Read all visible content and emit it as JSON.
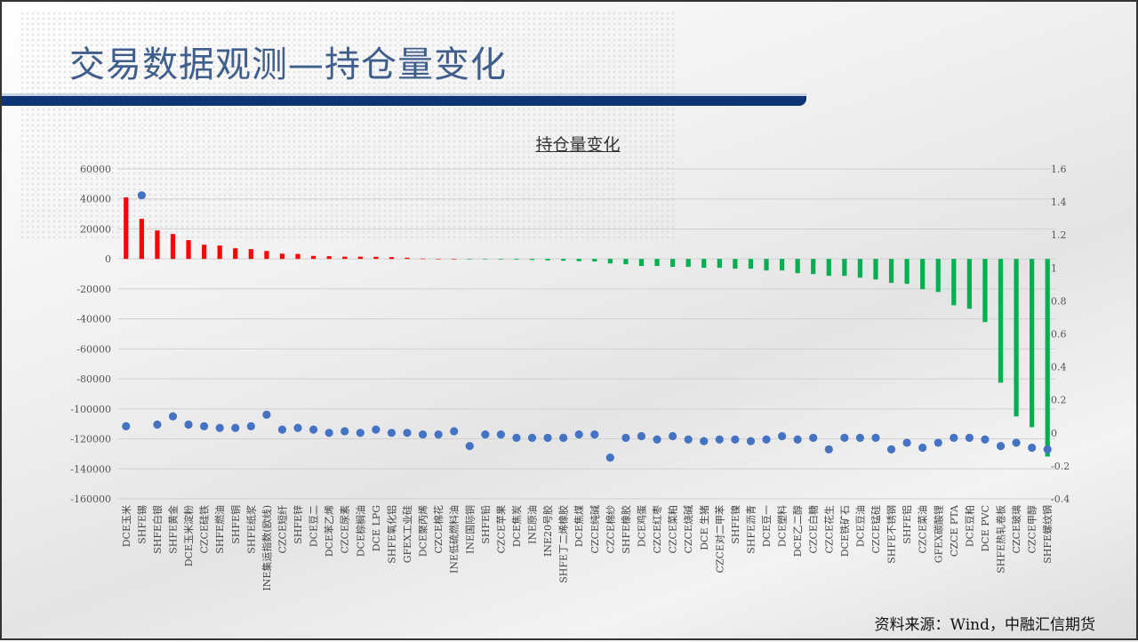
{
  "slide": {
    "title": "交易数据观测—持仓量变化",
    "source": "资料来源：Wind，中融汇信期货"
  },
  "colors": {
    "positive_bar": "#ff0000",
    "negative_bar": "#00b050",
    "dot": "#4472c4",
    "title": "#3f5e8c",
    "rule": "#0d3574"
  },
  "chart_data": {
    "type": "bar",
    "title": "持仓量变化",
    "categories": [
      "DCE玉米",
      "SHFE锡",
      "SHFE白银",
      "SHFE黄金",
      "DCE玉米淀粉",
      "CZCE硅铁",
      "SHFE燃油",
      "SHFE铜",
      "SHFE纸浆",
      "INE集运指数(欧线)",
      "CZCE短纤",
      "SHFE锌",
      "DCE豆二",
      "DCE苯乙烯",
      "CZCE尿素",
      "DCE棕榈油",
      "DCE LPG",
      "SHFE氧化铝",
      "GFEX工业硅",
      "DCE聚丙烯",
      "CZCE棉花",
      "INE低硫燃料油",
      "INE国际铜",
      "SHFE铅",
      "CZCE苹果",
      "DCE焦炭",
      "INE原油",
      "INE20号胶",
      "SHFE丁二烯橡胶",
      "DCE焦煤",
      "CZCE纯碱",
      "CZCE棉纱",
      "SHFE橡胶",
      "DCE鸡蛋",
      "CZCE红枣",
      "CZCE菜粕",
      "CZCE烧碱",
      "DCE 生猪",
      "CZCE对二甲苯",
      "SHFE镍",
      "SHFE沥青",
      "DCE豆一",
      "DCE塑料",
      "DCE乙二醇",
      "CZCE白糖",
      "CZCE花生",
      "DCE铁矿石",
      "DCE豆油",
      "CZCE锰硅",
      "SHFE不锈钢",
      "SHFE铝",
      "CZCE菜油",
      "GFEX碳酸锂",
      "CZCE PTA",
      "DCE豆粕",
      "DCE PVC",
      "SHFE热轧卷板",
      "CZCE玻璃",
      "CZCE甲醇",
      "SHFE螺纹钢"
    ],
    "series": [
      {
        "type": "bar",
        "axis": "left",
        "values": [
          41000,
          26700,
          19000,
          16600,
          12500,
          9500,
          8900,
          7100,
          6500,
          5300,
          3500,
          3300,
          2000,
          1800,
          1500,
          1500,
          1400,
          1200,
          800,
          200,
          100,
          50,
          -50,
          -300,
          -400,
          -500,
          -700,
          -1000,
          -1200,
          -1500,
          -1700,
          -3000,
          -3500,
          -4700,
          -4700,
          -5300,
          -5300,
          -5900,
          -5900,
          -6500,
          -6500,
          -7700,
          -7700,
          -9500,
          -10100,
          -11300,
          -11300,
          -12500,
          -13700,
          -16000,
          -16600,
          -20200,
          -22000,
          -30900,
          -33200,
          -42100,
          -82500,
          -105000,
          -112200,
          -131800
        ]
      },
      {
        "type": "scatter",
        "axis": "right",
        "values": [
          0.04,
          1.44,
          0.05,
          0.1,
          0.05,
          0.04,
          0.03,
          0.03,
          0.04,
          0.11,
          0.02,
          0.03,
          0.02,
          0.0,
          0.01,
          0.0,
          0.02,
          0.0,
          0.0,
          -0.01,
          -0.01,
          0.01,
          -0.08,
          -0.01,
          -0.01,
          -0.03,
          -0.03,
          -0.03,
          -0.03,
          -0.01,
          -0.01,
          -0.15,
          -0.03,
          -0.02,
          -0.04,
          -0.02,
          -0.04,
          -0.05,
          -0.04,
          -0.04,
          -0.05,
          -0.04,
          -0.02,
          -0.04,
          -0.03,
          -0.1,
          -0.03,
          -0.03,
          -0.03,
          -0.1,
          -0.06,
          -0.09,
          -0.06,
          -0.03,
          -0.03,
          -0.04,
          -0.08,
          -0.06,
          -0.09,
          -0.1
        ]
      }
    ],
    "left_axis": {
      "ylim": [
        -160000,
        60000
      ],
      "ticks": [
        "60000",
        "40000",
        "20000",
        "0",
        "-20000",
        "-40000",
        "-60000",
        "-80000",
        "-100000",
        "-120000",
        "-140000",
        "-160000"
      ]
    },
    "right_axis": {
      "ylim": [
        -0.4,
        1.6
      ],
      "ticks": [
        "1.6",
        "1.4",
        "1.2",
        "1",
        "0.8",
        "0.6",
        "0.4",
        "0.2",
        "0",
        "-0.2",
        "-0.4"
      ]
    },
    "grid": true,
    "legend": "none"
  }
}
